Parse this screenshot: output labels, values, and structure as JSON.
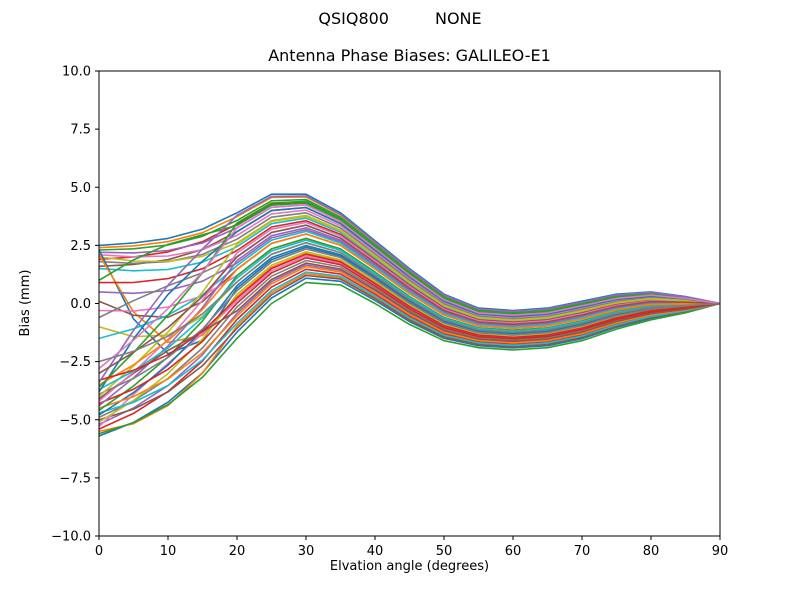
{
  "figure": {
    "background": "#ffffff"
  },
  "suptitle": {
    "left": "QSIQ800",
    "right": "NONE"
  },
  "chart_data": {
    "type": "line",
    "title": "Antenna Phase Biases: GALILEO-E1",
    "xlabel": "Elvation angle (degrees)",
    "ylabel": "Bias (mm)",
    "xlim": [
      0,
      90
    ],
    "ylim": [
      -10.0,
      10.0
    ],
    "xticks": [
      0,
      10,
      20,
      30,
      40,
      50,
      60,
      70,
      80,
      90
    ],
    "yticks": [
      10.0,
      7.5,
      5.0,
      2.5,
      0.0,
      -2.5,
      -5.0,
      -7.5,
      -10.0
    ],
    "grid": false,
    "legend": "none",
    "axis_color": "#000000",
    "line_width": 1.6,
    "x": [
      0,
      5,
      10,
      15,
      20,
      25,
      30,
      35,
      40,
      45,
      50,
      55,
      60,
      65,
      70,
      75,
      80,
      85,
      90
    ],
    "envelope_top": [
      2.5,
      2.6,
      2.8,
      3.2,
      3.9,
      4.7,
      4.7,
      3.9,
      2.7,
      1.5,
      0.4,
      -0.2,
      -0.3,
      -0.2,
      0.1,
      0.4,
      0.5,
      0.3,
      0.0
    ],
    "envelope_bottom": [
      -5.7,
      -5.2,
      -4.4,
      -3.2,
      -1.5,
      0.0,
      0.9,
      0.8,
      0.0,
      -0.9,
      -1.6,
      -1.9,
      -2.0,
      -1.9,
      -1.6,
      -1.1,
      -0.7,
      -0.4,
      0.0
    ],
    "blend_end_x": 20,
    "palette": [
      "#1f77b4",
      "#ff7f0e",
      "#2ca02c",
      "#d62728",
      "#9467bd",
      "#8c564b",
      "#e377c2",
      "#7f7f7f",
      "#bcbd22",
      "#17becf"
    ],
    "series_format": [
      "band_position_t",
      "start_value_y0_mm",
      "low_elevation_wiggle_d_mm"
    ],
    "series": [
      [
        1.0,
        2.5,
        0.0
      ],
      [
        0.97,
        2.4,
        0.0
      ],
      [
        0.94,
        2.3,
        0.0
      ],
      [
        0.91,
        1.9,
        0.0
      ],
      [
        0.88,
        2.2,
        0.0
      ],
      [
        0.85,
        1.6,
        0.0
      ],
      [
        0.82,
        2.1,
        0.0
      ],
      [
        0.79,
        1.8,
        0.0
      ],
      [
        0.76,
        2.0,
        0.0
      ],
      [
        0.73,
        1.5,
        0.0
      ],
      [
        0.4,
        2.3,
        -3.0
      ],
      [
        0.33,
        2.1,
        -2.2
      ],
      [
        0.9,
        1.0,
        0.8
      ],
      [
        0.7,
        0.9,
        0.0
      ],
      [
        0.6,
        0.5,
        0.0
      ],
      [
        0.55,
        0.1,
        -0.8
      ],
      [
        0.5,
        -0.3,
        0.0
      ],
      [
        0.65,
        -0.6,
        0.6
      ],
      [
        0.45,
        -1.0,
        -0.7
      ],
      [
        0.58,
        -1.5,
        0.0
      ],
      [
        0.05,
        -5.7,
        0.0
      ],
      [
        0.1,
        -5.5,
        -0.4
      ],
      [
        0.0,
        -5.6,
        0.0
      ],
      [
        0.15,
        -5.4,
        0.0
      ],
      [
        0.2,
        -5.2,
        0.0
      ],
      [
        0.08,
        -5.0,
        0.0
      ],
      [
        0.3,
        -5.3,
        0.7
      ],
      [
        0.25,
        -4.9,
        0.0
      ],
      [
        0.35,
        -5.1,
        0.0
      ],
      [
        0.12,
        -4.7,
        0.0
      ],
      [
        0.42,
        -4.8,
        0.0
      ],
      [
        0.18,
        -4.5,
        0.0
      ],
      [
        0.5,
        -4.6,
        0.0
      ],
      [
        0.28,
        -4.3,
        0.0
      ],
      [
        0.62,
        -4.4,
        0.0
      ],
      [
        0.22,
        -4.1,
        0.9
      ],
      [
        0.68,
        -4.2,
        0.0
      ],
      [
        0.38,
        -3.9,
        0.0
      ],
      [
        0.75,
        -4.0,
        0.0
      ],
      [
        0.48,
        -3.7,
        0.0
      ],
      [
        0.85,
        -3.8,
        1.2
      ],
      [
        0.55,
        -3.5,
        0.0
      ],
      [
        0.92,
        -3.6,
        0.0
      ],
      [
        0.32,
        -3.3,
        0.0
      ],
      [
        0.98,
        -3.4,
        1.0
      ],
      [
        0.65,
        -3.0,
        0.0
      ],
      [
        0.88,
        -2.8,
        0.0
      ],
      [
        0.45,
        -2.5,
        0.0
      ]
    ]
  }
}
